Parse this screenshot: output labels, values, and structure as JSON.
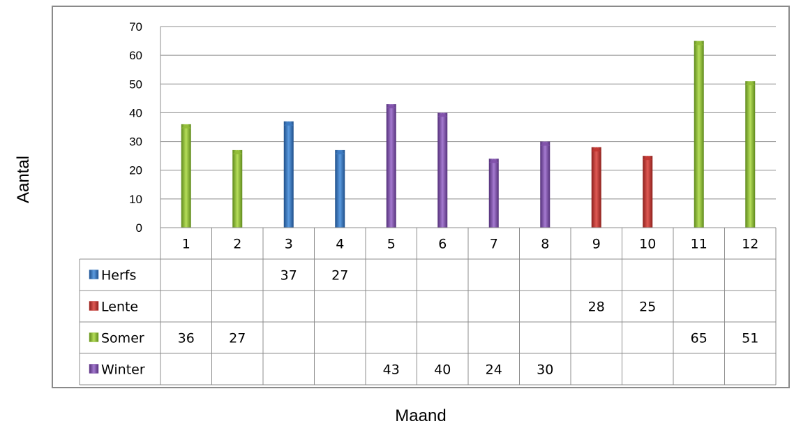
{
  "chart_data": {
    "type": "bar",
    "title": "",
    "xlabel": "Maand",
    "ylabel": "Aantal",
    "ylim": [
      0,
      70
    ],
    "yticks": [
      "0",
      "10",
      "20",
      "30",
      "40",
      "50",
      "60",
      "70"
    ],
    "categories": [
      "1",
      "2",
      "3",
      "4",
      "5",
      "6",
      "7",
      "8",
      "9",
      "10",
      "11",
      "12"
    ],
    "grid": true,
    "legend": "data-table-left",
    "series": [
      {
        "name": "Herfs",
        "color": "#3a78c0",
        "values": [
          null,
          null,
          37,
          27,
          null,
          null,
          null,
          null,
          null,
          null,
          null,
          null
        ],
        "labels": [
          "",
          "",
          "37",
          "27",
          "",
          "",
          "",
          "",
          "",
          "",
          "",
          ""
        ]
      },
      {
        "name": "Lente",
        "color": "#c0342f",
        "values": [
          null,
          null,
          null,
          null,
          null,
          null,
          null,
          null,
          28,
          25,
          null,
          null
        ],
        "labels": [
          "",
          "",
          "",
          "",
          "",
          "",
          "",
          "",
          "28",
          "25",
          "",
          ""
        ]
      },
      {
        "name": "Somer",
        "color": "#8fba36",
        "values": [
          36,
          27,
          null,
          null,
          null,
          null,
          null,
          null,
          null,
          null,
          65,
          51
        ],
        "labels": [
          "36",
          "27",
          "",
          "",
          "",
          "",
          "",
          "",
          "",
          "",
          "65",
          "51"
        ]
      },
      {
        "name": "Winter",
        "color": "#7f4fa8",
        "values": [
          null,
          null,
          null,
          null,
          43,
          40,
          24,
          30,
          null,
          null,
          null,
          null
        ],
        "labels": [
          "",
          "",
          "",
          "",
          "43",
          "40",
          "24",
          "30",
          "",
          "",
          "",
          ""
        ]
      }
    ]
  }
}
